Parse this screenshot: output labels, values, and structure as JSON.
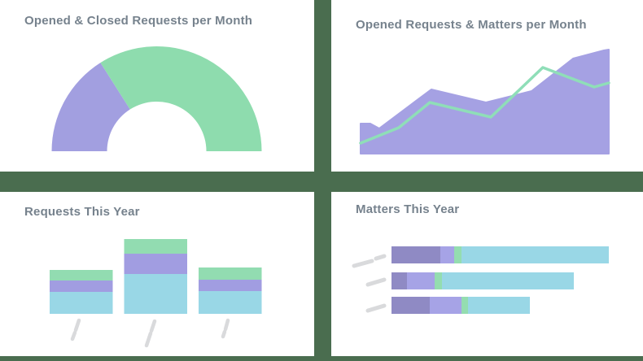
{
  "theme": {
    "background_green": "#4a6d4f",
    "card_background": "#ffffff",
    "title_text": "#76828d",
    "placeholder_gray": "#d9dadc",
    "purple": "#a29fe0",
    "dark_purple": "#8f8ac4",
    "mint_green": "#8edcae",
    "cyan": "#99d7e6"
  },
  "chart_data": [
    {
      "type": "pie",
      "variant": "semi-donut",
      "title": "Opened & Closed Requests per Month",
      "legend": false,
      "data_labels": false,
      "segments": [
        {
          "name": "purple-segment",
          "color": "#a29fe0",
          "percent": 32
        },
        {
          "name": "green-segment",
          "color": "#8edcae",
          "percent": 68
        }
      ]
    },
    {
      "type": "area",
      "title": "Opened Requests & Matters per Month",
      "axes_visible": false,
      "grid": false,
      "legend": false,
      "xlim": [
        0,
        100
      ],
      "ylim": [
        0,
        140
      ],
      "series": [
        {
          "name": "purple-area",
          "kind": "area",
          "color": "#a5a1e3",
          "x": [
            0,
            3.9,
            7.5,
            28.5,
            50.5,
            68.9,
            85.6,
            98,
            100
          ],
          "y": [
            37,
            37,
            31,
            79,
            63,
            77,
            117,
            127,
            128
          ]
        },
        {
          "name": "green-line",
          "kind": "line",
          "color": "#8fdeb8",
          "x": [
            0,
            15.4,
            27.9,
            52.5,
            73.4,
            94.1,
            100
          ],
          "y": [
            13,
            32,
            63,
            45,
            106,
            82,
            87
          ]
        }
      ]
    },
    {
      "type": "bar",
      "stacked": true,
      "orientation": "vertical",
      "title": "Requests This Year",
      "axes_visible": false,
      "legend": false,
      "placeholder_tick_labels": true,
      "categories": [
        "",
        "",
        ""
      ],
      "series": [
        {
          "name": "cyan",
          "color": "#99d7e6",
          "values": [
            27,
            49,
            28
          ]
        },
        {
          "name": "purple",
          "color": "#a19de1",
          "values": [
            14,
            25,
            14
          ]
        },
        {
          "name": "green",
          "color": "#92dcb1",
          "values": [
            13,
            18,
            15
          ]
        }
      ]
    },
    {
      "type": "bar",
      "stacked": true,
      "orientation": "horizontal",
      "title": "Matters This Year",
      "axes_visible": false,
      "legend": false,
      "placeholder_tick_labels": true,
      "categories": [
        "",
        "",
        ""
      ],
      "series": [
        {
          "name": "dark-purple",
          "color": "#8f8ac4",
          "values": [
            60,
            19,
            47
          ]
        },
        {
          "name": "light-purple",
          "color": "#a6a3e6",
          "values": [
            17,
            34,
            39
          ]
        },
        {
          "name": "green",
          "color": "#94ddb0",
          "values": [
            9,
            9,
            8
          ]
        },
        {
          "name": "cyan",
          "color": "#99d7e6",
          "values": [
            181,
            162,
            76
          ]
        }
      ]
    }
  ]
}
